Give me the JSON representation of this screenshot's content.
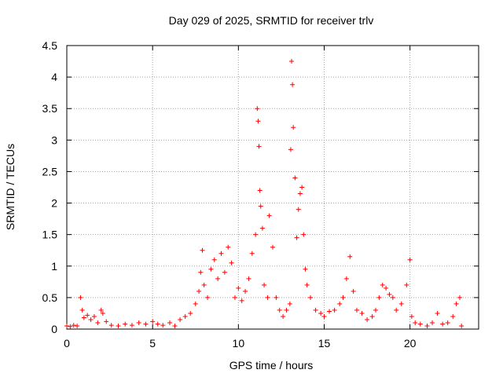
{
  "chart_data": {
    "type": "scatter",
    "title": "Day 029 of 2025, SRMTID for receiver trlv",
    "xlabel": "GPS time / hours",
    "ylabel": "SRMTID / TECUs",
    "xlim": [
      0,
      24
    ],
    "ylim": [
      0,
      4.5
    ],
    "grid": true,
    "marker": "+",
    "color": "#ff0000",
    "x_ticks": [
      0,
      5,
      10,
      15,
      20
    ],
    "x_tick_labels": [
      "0",
      "5",
      "10",
      "15",
      "20"
    ],
    "y_ticks": [
      0,
      0.5,
      1,
      1.5,
      2,
      2.5,
      3,
      3.5,
      4,
      4.5
    ],
    "y_tick_labels": [
      "0",
      "0.5",
      "1",
      "1.5",
      "2",
      "2.5",
      "3",
      "3.5",
      "4",
      "4.5"
    ],
    "series": [
      {
        "name": "SRMTID",
        "points": [
          [
            0.0,
            0.05
          ],
          [
            0.2,
            0.04
          ],
          [
            0.4,
            0.06
          ],
          [
            0.6,
            0.05
          ],
          [
            0.8,
            0.5
          ],
          [
            0.9,
            0.3
          ],
          [
            1.0,
            0.18
          ],
          [
            1.2,
            0.22
          ],
          [
            1.4,
            0.15
          ],
          [
            1.6,
            0.2
          ],
          [
            1.8,
            0.1
          ],
          [
            2.0,
            0.3
          ],
          [
            2.1,
            0.25
          ],
          [
            2.3,
            0.12
          ],
          [
            2.6,
            0.06
          ],
          [
            3.0,
            0.05
          ],
          [
            3.4,
            0.08
          ],
          [
            3.8,
            0.06
          ],
          [
            4.2,
            0.1
          ],
          [
            4.6,
            0.08
          ],
          [
            5.0,
            0.12
          ],
          [
            5.3,
            0.08
          ],
          [
            5.6,
            0.06
          ],
          [
            6.0,
            0.1
          ],
          [
            6.3,
            0.05
          ],
          [
            6.6,
            0.15
          ],
          [
            6.9,
            0.2
          ],
          [
            7.2,
            0.25
          ],
          [
            7.5,
            0.4
          ],
          [
            7.7,
            0.6
          ],
          [
            7.8,
            0.9
          ],
          [
            7.9,
            1.25
          ],
          [
            8.0,
            0.7
          ],
          [
            8.2,
            0.5
          ],
          [
            8.4,
            0.95
          ],
          [
            8.6,
            1.1
          ],
          [
            8.8,
            0.8
          ],
          [
            9.0,
            1.2
          ],
          [
            9.2,
            0.9
          ],
          [
            9.4,
            1.3
          ],
          [
            9.6,
            1.05
          ],
          [
            9.8,
            0.5
          ],
          [
            10.0,
            0.65
          ],
          [
            10.2,
            0.45
          ],
          [
            10.4,
            0.6
          ],
          [
            10.6,
            0.8
          ],
          [
            10.8,
            1.2
          ],
          [
            11.0,
            1.5
          ],
          [
            11.1,
            3.5
          ],
          [
            11.15,
            3.3
          ],
          [
            11.2,
            2.9
          ],
          [
            11.25,
            2.2
          ],
          [
            11.3,
            1.95
          ],
          [
            11.4,
            1.6
          ],
          [
            11.5,
            0.7
          ],
          [
            11.7,
            0.5
          ],
          [
            11.8,
            1.8
          ],
          [
            12.0,
            1.3
          ],
          [
            12.2,
            0.5
          ],
          [
            12.4,
            0.3
          ],
          [
            12.6,
            0.2
          ],
          [
            12.8,
            0.3
          ],
          [
            13.0,
            0.4
          ],
          [
            13.05,
            2.85
          ],
          [
            13.1,
            4.25
          ],
          [
            13.15,
            3.88
          ],
          [
            13.2,
            3.2
          ],
          [
            13.3,
            2.4
          ],
          [
            13.4,
            1.45
          ],
          [
            13.5,
            1.9
          ],
          [
            13.6,
            2.15
          ],
          [
            13.7,
            2.25
          ],
          [
            13.8,
            1.5
          ],
          [
            13.9,
            0.95
          ],
          [
            14.0,
            0.7
          ],
          [
            14.2,
            0.5
          ],
          [
            14.5,
            0.3
          ],
          [
            14.8,
            0.25
          ],
          [
            15.0,
            0.2
          ],
          [
            15.3,
            0.28
          ],
          [
            15.6,
            0.3
          ],
          [
            15.9,
            0.4
          ],
          [
            16.1,
            0.5
          ],
          [
            16.3,
            0.8
          ],
          [
            16.5,
            1.15
          ],
          [
            16.7,
            0.6
          ],
          [
            16.9,
            0.3
          ],
          [
            17.2,
            0.25
          ],
          [
            17.5,
            0.15
          ],
          [
            17.8,
            0.2
          ],
          [
            18.0,
            0.3
          ],
          [
            18.2,
            0.5
          ],
          [
            18.4,
            0.7
          ],
          [
            18.6,
            0.65
          ],
          [
            18.8,
            0.55
          ],
          [
            19.0,
            0.5
          ],
          [
            19.2,
            0.3
          ],
          [
            19.5,
            0.4
          ],
          [
            19.8,
            0.7
          ],
          [
            20.0,
            1.1
          ],
          [
            20.1,
            0.2
          ],
          [
            20.3,
            0.1
          ],
          [
            20.6,
            0.08
          ],
          [
            21.0,
            0.05
          ],
          [
            21.3,
            0.1
          ],
          [
            21.6,
            0.25
          ],
          [
            21.9,
            0.08
          ],
          [
            22.2,
            0.1
          ],
          [
            22.5,
            0.2
          ],
          [
            22.7,
            0.4
          ],
          [
            22.9,
            0.5
          ],
          [
            23.0,
            0.05
          ]
        ]
      }
    ]
  }
}
